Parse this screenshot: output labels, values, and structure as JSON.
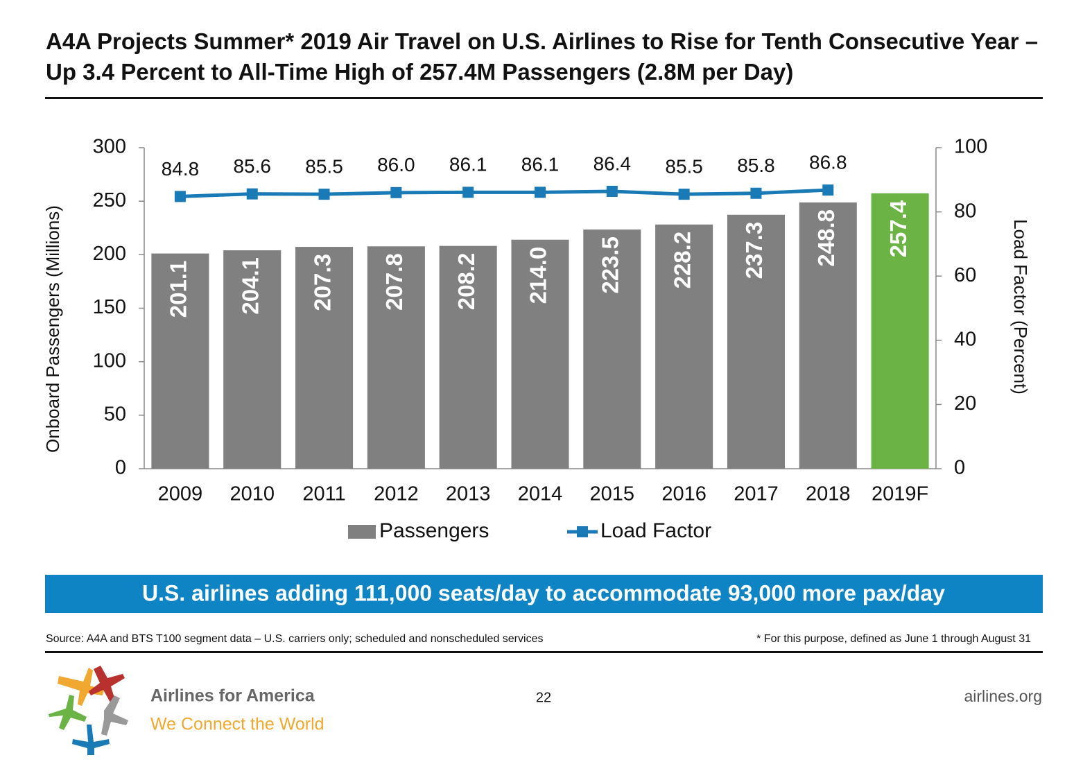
{
  "header": {
    "title": "A4A Projects Summer* 2019 Air Travel on U.S. Airlines to Rise for Tenth Consecutive Year – Up 3.4 Percent to All-Time High of 257.4M Passengers (2.8M per Day)"
  },
  "chart_data": {
    "type": "bar",
    "categories": [
      "2009",
      "2010",
      "2011",
      "2012",
      "2013",
      "2014",
      "2015",
      "2016",
      "2017",
      "2018",
      "2019F"
    ],
    "y_label": "Onboard Passengers (Millions)",
    "y2_label": "Load Factor (Percent)",
    "ylim": [
      0,
      300
    ],
    "yticks": [
      0,
      50,
      100,
      150,
      200,
      250,
      300
    ],
    "y2lim": [
      0,
      100
    ],
    "y2ticks": [
      0,
      20,
      40,
      60,
      80,
      100
    ],
    "legend": "bottom",
    "series": [
      {
        "name": "Passengers",
        "type": "bar",
        "color": "#808080",
        "colors": [
          "#808080",
          "#808080",
          "#808080",
          "#808080",
          "#808080",
          "#808080",
          "#808080",
          "#808080",
          "#808080",
          "#808080",
          "#6ab344"
        ],
        "values": [
          201.1,
          204.1,
          207.3,
          207.8,
          208.2,
          214.0,
          223.5,
          228.2,
          237.3,
          248.8,
          257.4
        ],
        "value_labels": [
          "201.1",
          "204.1",
          "207.3",
          "207.8",
          "208.2",
          "214.0",
          "223.5",
          "228.2",
          "237.3",
          "248.8",
          "257.4"
        ]
      },
      {
        "name": "Load Factor",
        "type": "line",
        "axis": "y2",
        "color": "#1a7ab5",
        "values": [
          84.8,
          85.6,
          85.5,
          86.0,
          86.1,
          86.1,
          86.4,
          85.5,
          85.8,
          86.8,
          null
        ],
        "value_labels": [
          "84.8",
          "85.6",
          "85.5",
          "86.0",
          "86.1",
          "86.1",
          "86.4",
          "85.5",
          "85.8",
          "86.8",
          null
        ]
      }
    ]
  },
  "banner": "U.S. airlines adding 111,000 seats/day to accommodate 93,000 more pax/day",
  "footer": {
    "source": "Source: A4A and BTS T100 segment data – U.S. carriers only; scheduled and nonscheduled services",
    "footnote": "* For this purpose, defined as June 1 through August 31",
    "page": "22",
    "brand": "Airlines for America",
    "tagline": "We Connect the World",
    "site": "airlines.org"
  }
}
